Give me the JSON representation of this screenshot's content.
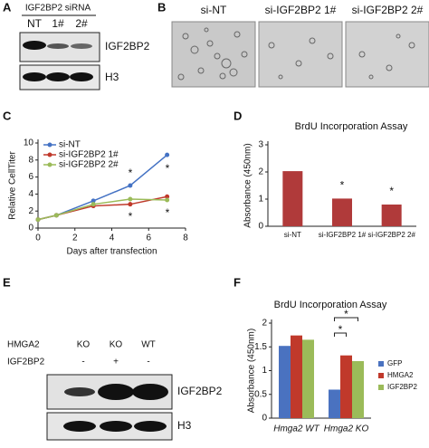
{
  "figure": {
    "panel_labels": [
      "A",
      "B",
      "C",
      "D",
      "E",
      "F"
    ],
    "blot_a": {
      "header": "IGF2BP2 siRNA",
      "lanes": [
        "NT",
        "1#",
        "2#"
      ],
      "bands": [
        "IGF2BP2",
        "H3"
      ]
    },
    "images_b": {
      "labels": [
        "si-NT",
        "si-IGF2BP2 1#",
        "si-IGF2BP2 2#"
      ]
    },
    "blot_e": {
      "rows": [
        {
          "name": "HMGA2",
          "lanes": [
            "KO",
            "KO",
            "WT"
          ]
        },
        {
          "name": "IGF2BP2",
          "lanes": [
            "-",
            "+",
            "-"
          ]
        }
      ],
      "bands": [
        "IGF2BP2",
        "H3"
      ]
    }
  },
  "chart_data": [
    {
      "type": "line",
      "xlabel": "Days after transfection",
      "ylabel": "Relative CellTiter",
      "x": [
        0,
        1,
        3,
        5,
        7
      ],
      "xlim": [
        0,
        8
      ],
      "xticks": [
        0,
        2,
        4,
        6,
        8
      ],
      "ylim": [
        0,
        10
      ],
      "yticks": [
        0,
        2,
        4,
        6,
        8,
        10
      ],
      "legend": "upper left",
      "annotations": [
        "*",
        "*",
        "*",
        "*"
      ],
      "series": [
        {
          "name": "si-NT",
          "color": "#4472c4",
          "values": [
            1,
            1.5,
            3.2,
            5,
            8.6
          ]
        },
        {
          "name": "si-IGF2BP2 1#",
          "color": "#c0392b",
          "values": [
            1,
            1.5,
            2.6,
            2.8,
            3.7
          ]
        },
        {
          "name": "si-IGF2BP2 2#",
          "color": "#9bbb59",
          "values": [
            1,
            1.5,
            2.8,
            3.4,
            3.3
          ]
        }
      ]
    },
    {
      "type": "bar",
      "title": "BrdU Incorporation Assay",
      "ylabel": "Absorbance (450nm)",
      "categories": [
        "si-NT",
        "si-IGF2BP2 1#",
        "si-IGF2BP2 2#"
      ],
      "values": [
        2.03,
        1.02,
        0.8
      ],
      "color": "#b03a3a",
      "ylim": [
        0,
        3
      ],
      "yticks": [
        0,
        1,
        2,
        3
      ],
      "annotations": [
        "*",
        "*"
      ]
    },
    {
      "type": "grouped_bar",
      "title": "BrdU Incorporation Assay",
      "ylabel": "Absorbance (450nm)",
      "categories": [
        "Hmga2 WT",
        "Hmga2 KO"
      ],
      "ylim": [
        0,
        2
      ],
      "yticks": [
        0,
        0.5,
        1,
        1.5,
        2
      ],
      "legend": "right",
      "annotations": [
        "*",
        "*"
      ],
      "series": [
        {
          "name": "GFP",
          "color": "#4a72c0",
          "values": [
            1.52,
            0.6
          ]
        },
        {
          "name": "HMGA2",
          "color": "#c0392b",
          "values": [
            1.74,
            1.32
          ]
        },
        {
          "name": "IGF2BP2",
          "color": "#9bbb59",
          "values": [
            1.65,
            1.2
          ]
        }
      ]
    }
  ]
}
